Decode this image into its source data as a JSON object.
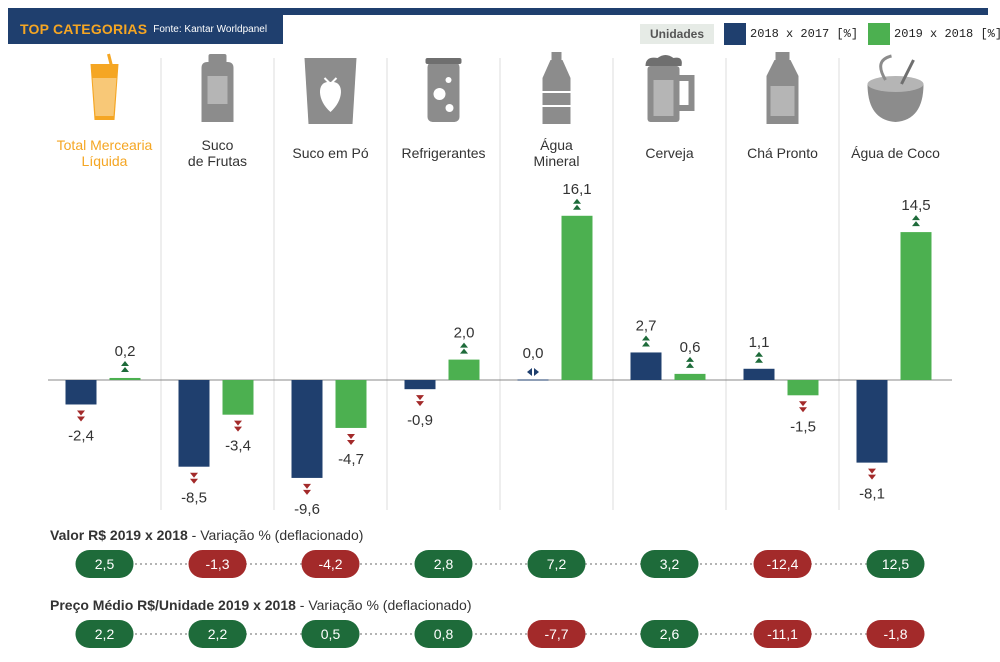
{
  "header": {
    "title": "TOP CATEGORIAS",
    "source": "Fonte: Kantar Worldpanel"
  },
  "legend": {
    "units_label": "Unidades",
    "items": [
      {
        "label": "2018 x 2017 [%]",
        "color": "#1f3f6e"
      },
      {
        "label": "2019 x 2018 [%]",
        "color": "#4cb050"
      }
    ]
  },
  "colors": {
    "series1": "#1f3f6e",
    "series2": "#4cb050",
    "highlight": "#f5a623",
    "up_arrow": "#1e6b3a",
    "down_arrow": "#a32a2a",
    "pill_green": "#1e6b3a",
    "pill_red": "#a32a2a",
    "icon_gray": "#8c8c8c"
  },
  "chart_data": {
    "type": "bar",
    "categories": [
      [
        "Total Mercearia",
        "Líquida"
      ],
      [
        "Suco",
        "de Frutas"
      ],
      [
        "Suco em Pó"
      ],
      [
        "Refrigerantes"
      ],
      [
        "Água",
        "Mineral"
      ],
      [
        "Cerveja"
      ],
      [
        "Chá Pronto"
      ],
      [
        "Água de Coco"
      ]
    ],
    "category_icons": [
      "juice-glass-icon",
      "juice-bottle-icon",
      "powder-sachet-icon",
      "soda-can-icon",
      "water-bottle-icon",
      "beer-mug-icon",
      "tea-bottle-icon",
      "coconut-icon"
    ],
    "series": [
      {
        "name": "2018 x 2017 [%]",
        "values": [
          -2.4,
          -8.5,
          -9.6,
          -0.9,
          0.0,
          2.7,
          1.1,
          -8.1
        ],
        "labels": [
          "-2,4",
          "-8,5",
          "-9,6",
          "-0,9",
          "0,0",
          "2,7",
          "1,1",
          "-8,1"
        ]
      },
      {
        "name": "2019 x 2018 [%]",
        "values": [
          0.2,
          -3.4,
          -4.7,
          2.0,
          16.1,
          0.6,
          -1.5,
          14.5
        ],
        "labels": [
          "0,2",
          "-3,4",
          "-4,7",
          "2,0",
          "16,1",
          "0,6",
          "-1,5",
          "14,5"
        ]
      }
    ],
    "grid": false,
    "legend_position": "top-right"
  },
  "rows": [
    {
      "label_bold": "Valor R$ 2019 x 2018",
      "label_rest": " - Variação % (deflacionado)",
      "values": [
        "2,5",
        "-1,3",
        "-4,2",
        "2,8",
        "7,2",
        "3,2",
        "-12,4",
        "12,5"
      ],
      "numbers": [
        2.5,
        -1.3,
        -4.2,
        2.8,
        7.2,
        3.2,
        -12.4,
        12.5
      ]
    },
    {
      "label_bold": "Preço Médio R$/Unidade 2019 x 2018",
      "label_rest": " - Variação % (deflacionado)",
      "values": [
        "2,2",
        "2,2",
        "0,5",
        "0,8",
        "-7,7",
        "2,6",
        "-11,1",
        "-1,8"
      ],
      "numbers": [
        2.2,
        2.2,
        0.5,
        0.8,
        -7.7,
        2.6,
        -11.1,
        -1.8
      ]
    }
  ]
}
